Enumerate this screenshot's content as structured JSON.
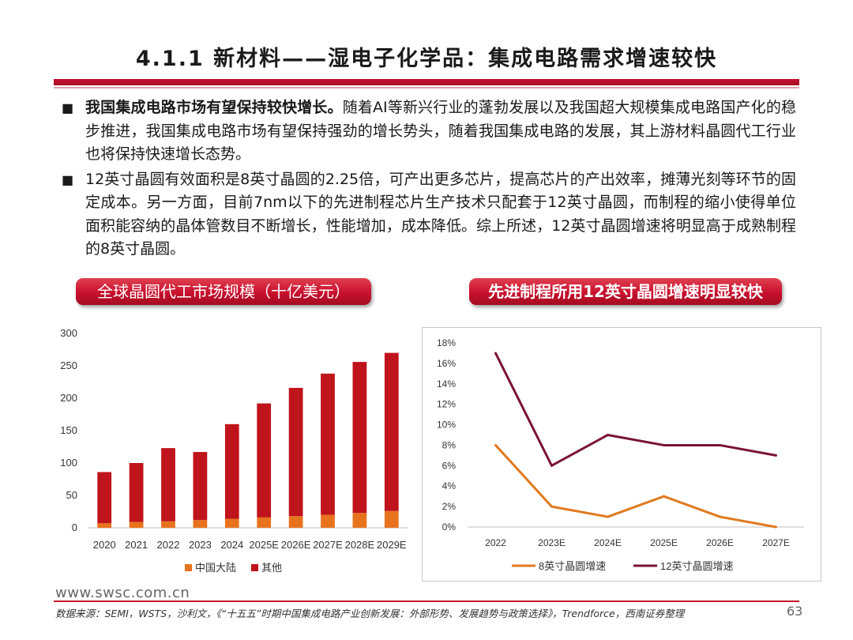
{
  "header": {
    "title": "4.1.1 新材料——湿电子化学品：集成电路需求增速较快"
  },
  "bullets": [
    {
      "bold": "我国集成电路市场有望保持较快增长。",
      "text": "随着AI等新兴行业的蓬勃发展以及我国超大规模集成电路国产化的稳步推进，我国集成电路市场有望保持强劲的增长势头，随着我国集成电路的发展，其上游材料晶圆代工行业也将保持快速增长态势。"
    },
    {
      "bold": "",
      "text": "12英寸晶圆有效面积是8英寸晶圆的2.25倍，可产出更多芯片，提高芯片的产出效率，摊薄光刻等环节的固定成本。另一方面，目前7nm以下的先进制程芯片生产技术只配套于12英寸晶圆，而制程的缩小使得单位面积能容纳的晶体管数目不断增长，性能增加，成本降低。综上所述，12英寸晶圆增速将明显高于成熟制程的8英寸晶圆。"
    }
  ],
  "bullet_marker": "■",
  "left_chart_title": "全球晶圆代工市场规模（十亿美元）",
  "right_chart_title": "先进制程所用12英寸晶圆增速明显较快",
  "chart_data": [
    {
      "type": "bar",
      "stacked": true,
      "title": "全球晶圆代工市场规模（十亿美元）",
      "categories": [
        "2020",
        "2021",
        "2022",
        "2023",
        "2024",
        "2025E",
        "2026E",
        "2027E",
        "2028E",
        "2029E"
      ],
      "series": [
        {
          "name": "中国大陆",
          "color": "#e8731e",
          "values": [
            7,
            9,
            10,
            12,
            14,
            16,
            18,
            20,
            23,
            26
          ]
        },
        {
          "name": "其他",
          "color": "#c0141c",
          "values": [
            79,
            91,
            113,
            105,
            146,
            176,
            198,
            218,
            233,
            244
          ]
        }
      ],
      "ylim": [
        0,
        300
      ],
      "yticks": [
        0,
        50,
        100,
        150,
        200,
        250,
        300
      ],
      "legend": "bottom"
    },
    {
      "type": "line",
      "title": "先进制程所用12英寸晶圆增速明显较快",
      "categories": [
        "2022",
        "2023E",
        "2024E",
        "2025E",
        "2026E",
        "2027E"
      ],
      "series": [
        {
          "name": "8英寸晶圆增速",
          "color": "#e07a1f",
          "values": [
            8,
            2,
            1,
            3,
            1,
            0
          ]
        },
        {
          "name": "12英寸晶圆增速",
          "color": "#7a1433",
          "values": [
            17,
            6,
            9,
            8,
            8,
            7
          ]
        }
      ],
      "ylim": [
        0,
        18
      ],
      "yticks": [
        "0%",
        "2%",
        "4%",
        "6%",
        "8%",
        "10%",
        "12%",
        "14%",
        "16%",
        "18%"
      ],
      "legend": "bottom"
    }
  ],
  "footer": {
    "url": "www.swsc.com.cn",
    "source": "数据来源：SEMI，WSTS，沙利文，《“十五五”时期中国集成电路产业创新发展：外部形势、发展趋势与政策选择》，Trendforce，西南证券整理",
    "page": "63"
  },
  "colors": {
    "accent": "#c8102e"
  }
}
